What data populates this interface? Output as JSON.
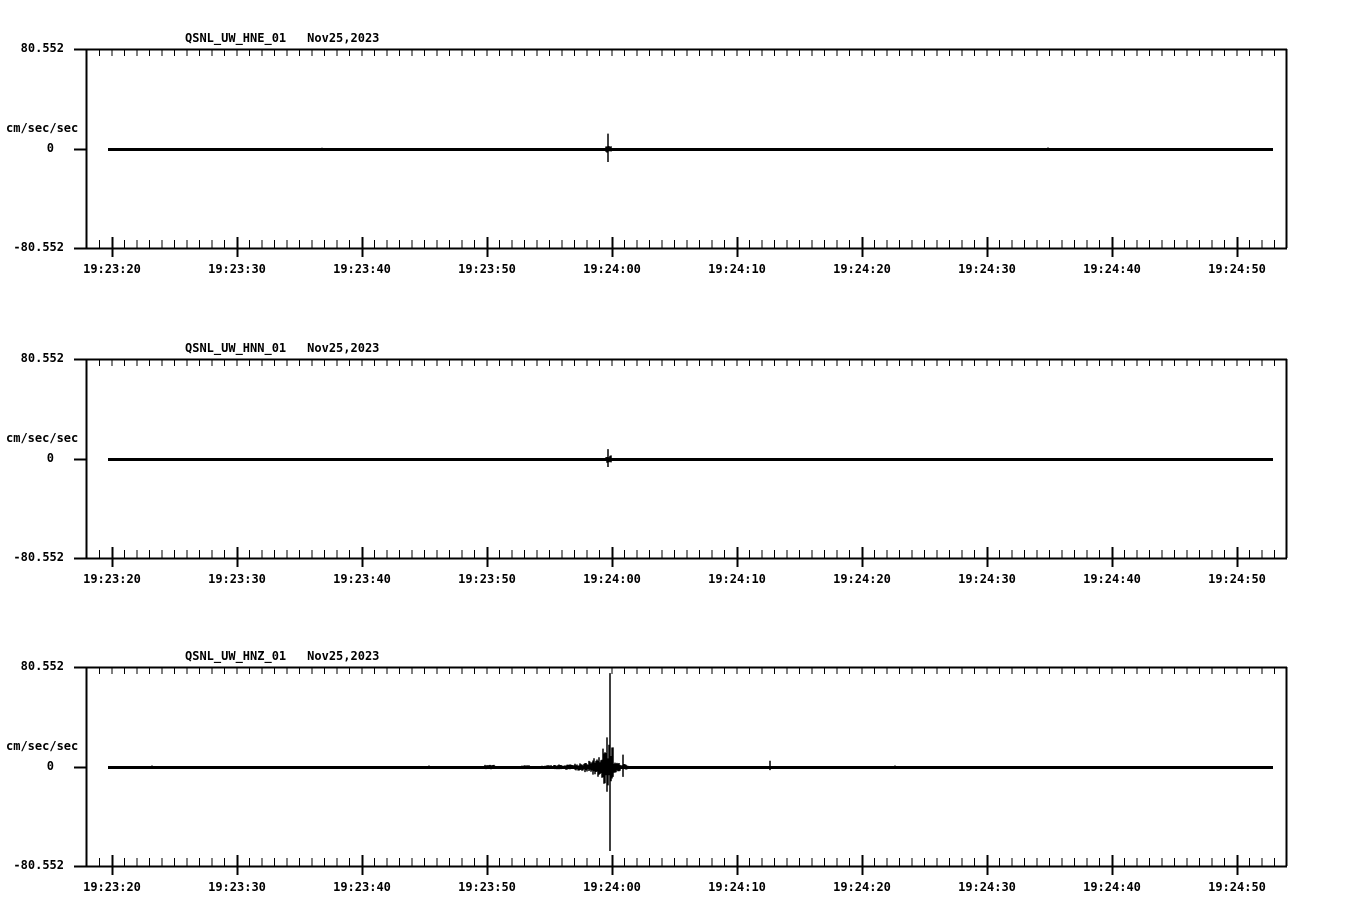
{
  "page": {
    "background_color": "#ffffff",
    "foreground_color": "#000000",
    "description": "Three-channel strong-motion seismogram display, station QSNL (UW network), event of Nov 25 2023 around 19:24:00"
  },
  "chart_data": [
    {
      "type": "line",
      "station": "QSNL_UW_HNE_01",
      "date": "Nov25,2023",
      "ylabel": "cm/sec/sec",
      "yticks": [
        "80.552",
        "0",
        "-80.552"
      ],
      "ylim": [
        -80.552,
        80.552
      ],
      "xticks": [
        "19:23:20",
        "19:23:30",
        "19:23:40",
        "19:23:50",
        "19:24:00",
        "19:24:10",
        "19:24:20",
        "19:24:30",
        "19:24:40",
        "19:24:50"
      ],
      "xlim": [
        "19:23:17.9",
        "19:24:54.0"
      ],
      "x_major_interval_sec": 10,
      "x_minor_interval_sec": 1,
      "grid": false,
      "legend": false,
      "baseline": 0,
      "trace_start": "19:23:19.7",
      "trace_end": "19:24:52.9",
      "events": [
        {
          "type": "spike",
          "time": "19:23:36.8",
          "up": 1.0,
          "down": 0.6
        },
        {
          "type": "noise",
          "from": "19:23:59.55",
          "to": "19:23:59.9",
          "amp": 3.0
        },
        {
          "type": "spike",
          "time": "19:23:59.7",
          "up": 12.5,
          "down": 10.5
        },
        {
          "type": "spike",
          "time": "19:24:12.6",
          "up": 0.6,
          "down": 1.5
        },
        {
          "type": "spike",
          "time": "19:24:34.9",
          "up": 1.2,
          "down": 0.8
        }
      ]
    },
    {
      "type": "line",
      "station": "QSNL_UW_HNN_01",
      "date": "Nov25,2023",
      "ylabel": "cm/sec/sec",
      "yticks": [
        "80.552",
        "0",
        "-80.552"
      ],
      "ylim": [
        -80.552,
        80.552
      ],
      "xticks": [
        "19:23:20",
        "19:23:30",
        "19:23:40",
        "19:23:50",
        "19:24:00",
        "19:24:10",
        "19:24:20",
        "19:24:30",
        "19:24:40",
        "19:24:50"
      ],
      "xlim": [
        "19:23:17.9",
        "19:24:54.0"
      ],
      "x_major_interval_sec": 10,
      "x_minor_interval_sec": 1,
      "grid": false,
      "legend": false,
      "baseline": 0,
      "trace_start": "19:23:19.7",
      "trace_end": "19:24:52.9",
      "events": [
        {
          "type": "noise",
          "from": "19:23:59.5",
          "to": "19:23:59.95",
          "amp": 3.5
        },
        {
          "type": "spike",
          "time": "19:23:59.7",
          "up": 8.0,
          "down": 6.5
        }
      ]
    },
    {
      "type": "line",
      "station": "QSNL_UW_HNZ_01",
      "date": "Nov25,2023",
      "ylabel": "cm/sec/sec",
      "yticks": [
        "80.552",
        "0",
        "-80.552"
      ],
      "ylim": [
        -80.552,
        80.552
      ],
      "xticks": [
        "19:23:20",
        "19:23:30",
        "19:23:40",
        "19:23:50",
        "19:24:00",
        "19:24:10",
        "19:24:20",
        "19:24:30",
        "19:24:40",
        "19:24:50"
      ],
      "xlim": [
        "19:23:17.9",
        "19:24:54.0"
      ],
      "x_major_interval_sec": 10,
      "x_minor_interval_sec": 1,
      "grid": false,
      "legend": false,
      "baseline": 0,
      "trace_start": "19:23:19.7",
      "trace_end": "19:24:52.9",
      "events": [
        {
          "type": "spike",
          "time": "19:23:23.2",
          "up": 1.2,
          "down": 1.2
        },
        {
          "type": "spike",
          "time": "19:23:45.4",
          "up": 1.2,
          "down": 1.0
        },
        {
          "type": "noise",
          "from": "19:23:49.8",
          "to": "19:23:50.6",
          "amp": 2.0
        },
        {
          "type": "noise",
          "from": "19:23:52.8",
          "to": "19:23:53.4",
          "amp": 1.6
        },
        {
          "type": "noise",
          "from": "19:23:54.4",
          "to": "19:23:57.6",
          "amp_start": 1.2,
          "amp_end": 3.2
        },
        {
          "type": "noise",
          "from": "19:23:57.6",
          "to": "19:23:59.3",
          "amp_start": 3.2,
          "amp_end": 10.0
        },
        {
          "type": "noise",
          "from": "19:23:59.3",
          "to": "19:24:00.1",
          "amp_start": 16.0,
          "amp_end": 20.0
        },
        {
          "type": "spike",
          "time": "19:23:59.6",
          "up": 24.0,
          "down": 20.0
        },
        {
          "type": "spike",
          "time": "19:23:59.84",
          "up": 76.0,
          "down": 68.0
        },
        {
          "type": "noise",
          "from": "19:24:00.1",
          "to": "19:24:01.4",
          "amp_start": 5.0,
          "amp_end": 1.5
        },
        {
          "type": "spike",
          "time": "19:24:00.9",
          "up": 10.0,
          "down": 8.0
        },
        {
          "type": "spike",
          "time": "19:24:12.6",
          "up": 5.0,
          "down": 2.5
        },
        {
          "type": "spike",
          "time": "19:24:22.6",
          "up": 1.2,
          "down": 1.2
        }
      ]
    }
  ]
}
